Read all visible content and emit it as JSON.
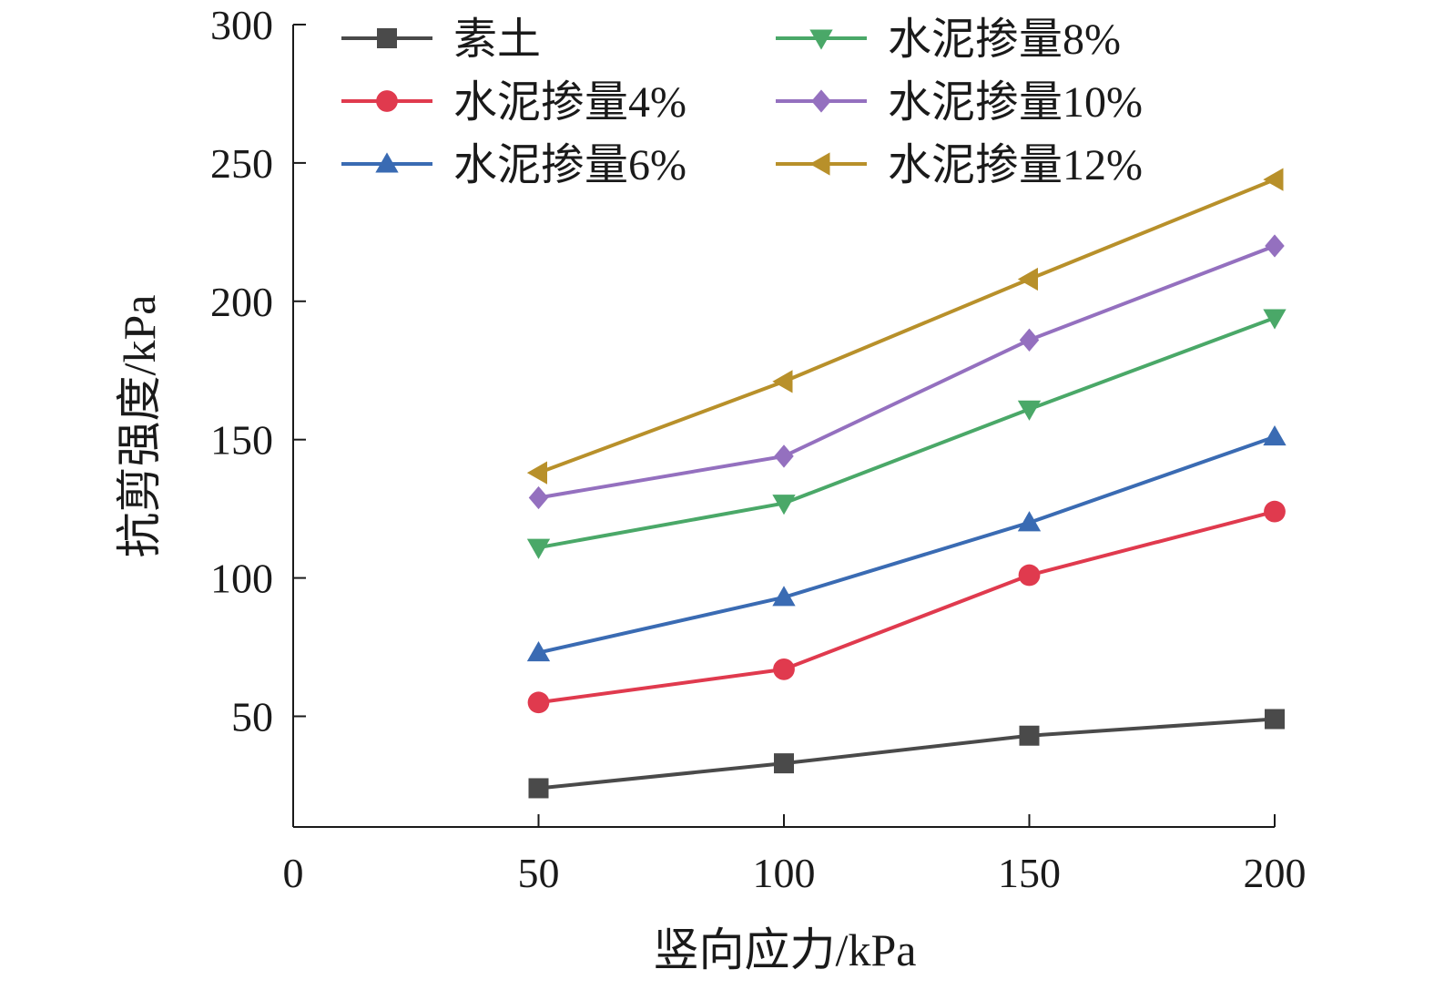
{
  "chart_data": {
    "type": "line",
    "title": "",
    "xlabel": "竖向应力/kPa",
    "ylabel": "抗剪强度/kPa",
    "xlim": [
      0,
      200
    ],
    "ylim": [
      10,
      300
    ],
    "x_ticks": [
      0,
      50,
      100,
      150,
      200
    ],
    "y_ticks": [
      50,
      100,
      150,
      200,
      250,
      300
    ],
    "x": [
      50,
      100,
      150,
      200
    ],
    "grid": false,
    "legend_position": "top, two columns",
    "series": [
      {
        "name": "素土",
        "color": "#4a4a4a",
        "marker": "square",
        "values": [
          24,
          33,
          43,
          49
        ]
      },
      {
        "name": "水泥掺量4%",
        "color": "#e03a4e",
        "marker": "circle",
        "values": [
          55,
          67,
          101,
          124
        ]
      },
      {
        "name": "水泥掺量6%",
        "color": "#3a6bb3",
        "marker": "triangle-up",
        "values": [
          73,
          93,
          120,
          151
        ]
      },
      {
        "name": "水泥掺量8%",
        "color": "#4aa868",
        "marker": "triangle-down",
        "values": [
          111,
          127,
          161,
          194
        ]
      },
      {
        "name": "水泥掺量10%",
        "color": "#9470bf",
        "marker": "diamond",
        "values": [
          129,
          144,
          186,
          220
        ]
      },
      {
        "name": "水泥掺量12%",
        "color": "#b8902a",
        "marker": "triangle-left",
        "values": [
          138,
          171,
          208,
          244
        ]
      }
    ]
  }
}
